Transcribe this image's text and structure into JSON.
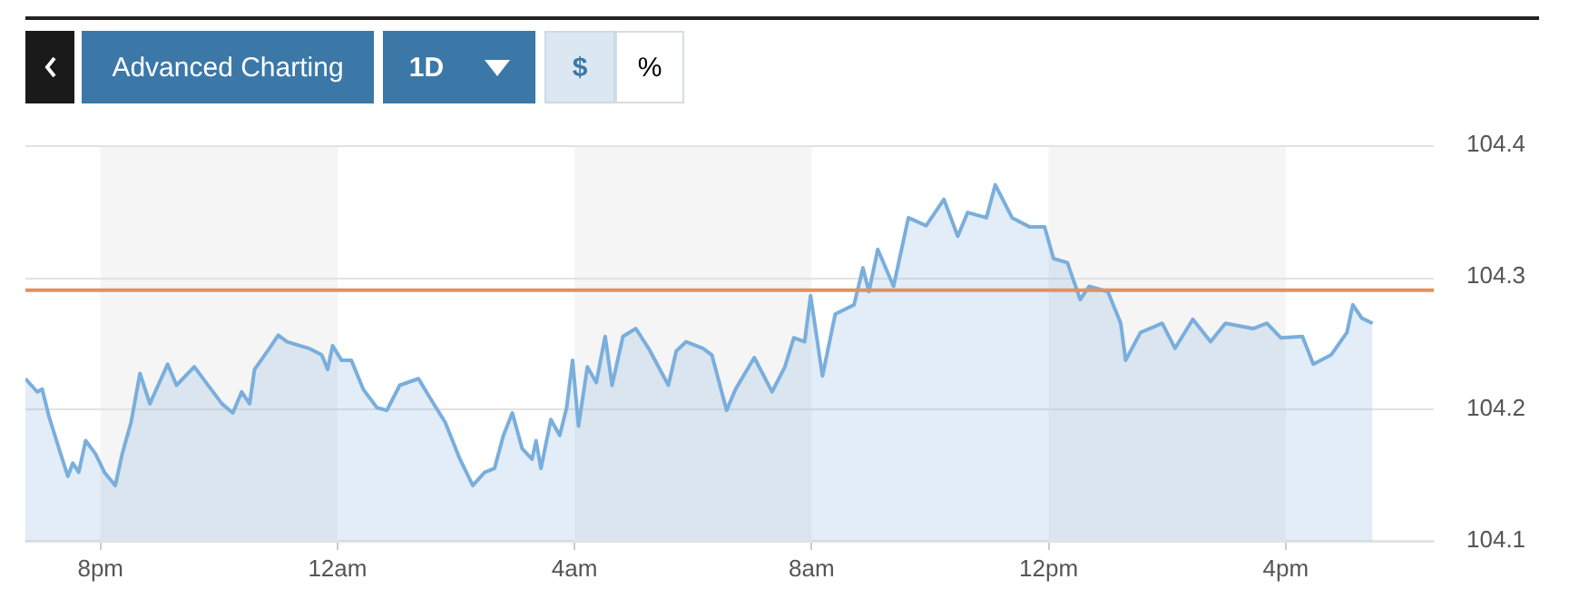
{
  "chart_data": {
    "type": "area",
    "annotations": [
      "Advanced Charting",
      "1D",
      "$",
      "%"
    ],
    "x": [
      "--01-01T18:44",
      "--01-01T18:56",
      "--01-01T19:01",
      "--01-01T19:08",
      "--01-01T19:18",
      "--01-01T19:27",
      "--01-01T19:32",
      "--01-01T19:38",
      "--01-01T19:45",
      "--01-01T19:55",
      "--01-01T20:04",
      "--01-01T20:15",
      "--01-01T20:22",
      "--01-01T20:31",
      "--01-01T20:40",
      "--01-01T20:50",
      "--01-01T21:08",
      "--01-01T21:17",
      "--01-01T21:35",
      "--01-01T21:47",
      "--01-01T22:03",
      "--01-01T22:14",
      "--01-01T22:23",
      "--01-01T22:31",
      "--01-01T22:36",
      "--01-01T22:51",
      "--01-01T23:00",
      "--01-01T23:09",
      "--01-01T23:31",
      "--01-01T23:44",
      "--01-01T23:50",
      "--01-01T23:55",
      "--01-02T00:04",
      "--01-02T00:14",
      "--01-02T00:26",
      "--01-02T00:40",
      "--01-02T00:50",
      "--01-02T01:03",
      "--01-02T01:22",
      "--01-02T01:34",
      "--01-02T01:49",
      "--01-02T02:04",
      "--01-02T02:17",
      "--01-02T02:29",
      "--01-02T02:39",
      "--01-02T02:48",
      "--01-02T02:57",
      "--01-02T03:07",
      "--01-02T03:12",
      "--01-02T03:17",
      "--01-02T03:21",
      "--01-02T03:26",
      "--01-02T03:36",
      "--01-02T03:45",
      "--01-02T03:52",
      "--01-02T03:58",
      "--01-02T04:04",
      "--01-02T04:13",
      "--01-02T04:22",
      "--01-02T04:31",
      "--01-02T04:38",
      "--01-02T04:49",
      "--01-02T05:02",
      "--01-02T05:15",
      "--01-02T05:35",
      "--01-02T05:43",
      "--01-02T05:53",
      "--01-02T06:10",
      "--01-02T06:19",
      "--01-02T06:34",
      "--01-02T06:43",
      "--01-02T07:02",
      "--01-02T07:20",
      "--01-02T07:33",
      "--01-02T07:42",
      "--01-02T07:53",
      "--01-02T07:59",
      "--01-02T08:11",
      "--01-02T08:24",
      "--01-02T08:43",
      "--01-02T08:52",
      "--01-02T08:58",
      "--01-02T09:07",
      "--01-02T09:23",
      "--01-02T09:38",
      "--01-02T09:56",
      "--01-02T10:14",
      "--01-02T10:28",
      "--01-02T10:38",
      "--01-02T10:57",
      "--01-02T11:06",
      "--01-02T11:23",
      "--01-02T11:41",
      "--01-02T11:56",
      "--01-02T12:05",
      "--01-02T12:19",
      "--01-02T12:32",
      "--01-02T12:41",
      "--01-02T13:00",
      "--01-02T13:13",
      "--01-02T13:18",
      "--01-02T13:33",
      "--01-02T13:55",
      "--01-02T14:08",
      "--01-02T14:26",
      "--01-02T14:44",
      "--01-02T14:59",
      "--01-02T15:27",
      "--01-02T15:41",
      "--01-02T15:55",
      "--01-02T16:17",
      "--01-02T16:28",
      "--01-02T16:46",
      "--01-02T17:02",
      "--01-02T17:08",
      "--01-02T17:17",
      "--01-02T17:28"
    ],
    "series": [
      {
        "color": "#7aaedc",
        "values": [
          104.223,
          104.213,
          104.215,
          104.194,
          104.17,
          104.149,
          104.159,
          104.152,
          104.176,
          104.166,
          104.152,
          104.142,
          104.166,
          104.19,
          104.227,
          104.204,
          104.234,
          104.218,
          104.232,
          104.22,
          104.204,
          104.197,
          104.213,
          104.204,
          104.23,
          104.246,
          104.256,
          104.251,
          104.246,
          104.241,
          104.23,
          104.248,
          104.237,
          104.237,
          104.215,
          104.201,
          104.199,
          104.218,
          104.223,
          104.208,
          104.19,
          104.162,
          104.142,
          104.152,
          104.155,
          104.18,
          104.197,
          104.17,
          104.166,
          104.162,
          104.176,
          104.155,
          104.192,
          104.18,
          104.201,
          104.237,
          104.187,
          104.232,
          104.22,
          104.255,
          104.218,
          104.255,
          104.261,
          104.246,
          104.218,
          104.244,
          104.251,
          104.246,
          104.241,
          104.199,
          104.215,
          104.239,
          104.213,
          104.232,
          104.254,
          104.251,
          104.286,
          104.225,
          104.272,
          104.279,
          104.307,
          104.289,
          104.321,
          104.293,
          104.345,
          104.339,
          104.359,
          104.331,
          104.349,
          104.345,
          104.37,
          104.345,
          104.338,
          104.338,
          104.314,
          104.311,
          104.283,
          104.293,
          104.289,
          104.265,
          104.237,
          104.258,
          104.265,
          104.246,
          104.268,
          104.251,
          104.265,
          104.261,
          104.265,
          104.254,
          104.255,
          104.234,
          104.241,
          104.258,
          104.279,
          104.269,
          104.265
        ]
      }
    ],
    "xlim": [
      "--01-01T18:44",
      "--01-02T18:30"
    ],
    "xticks": [
      {
        "value": "--01-01T20:00",
        "label": "8pm"
      },
      {
        "value": "--01-02T00:00",
        "label": "12am"
      },
      {
        "value": "--01-02T04:00",
        "label": "4am"
      },
      {
        "value": "--01-02T08:00",
        "label": "8am"
      },
      {
        "value": "--01-02T12:00",
        "label": "12pm"
      },
      {
        "value": "--01-02T16:00",
        "label": "4pm"
      }
    ],
    "ylim": [
      104.1,
      104.4
    ],
    "yticks": [
      104.1,
      104.2,
      104.3,
      104.4
    ],
    "grid": "y",
    "legend": false,
    "ref_lines": [
      {
        "axis": "y",
        "value": 104.29,
        "color": "#e3915e"
      }
    ],
    "bands": [
      {
        "axis": "x",
        "from": "--01-01T20:00",
        "to": "--01-02T00:00",
        "color": "#f5f5f5"
      },
      {
        "axis": "x",
        "from": "--01-02T04:00",
        "to": "--01-02T08:00",
        "color": "#f5f5f5"
      },
      {
        "axis": "x",
        "from": "--01-02T12:00",
        "to": "--01-02T16:00",
        "color": "#f5f5f5"
      }
    ]
  }
}
